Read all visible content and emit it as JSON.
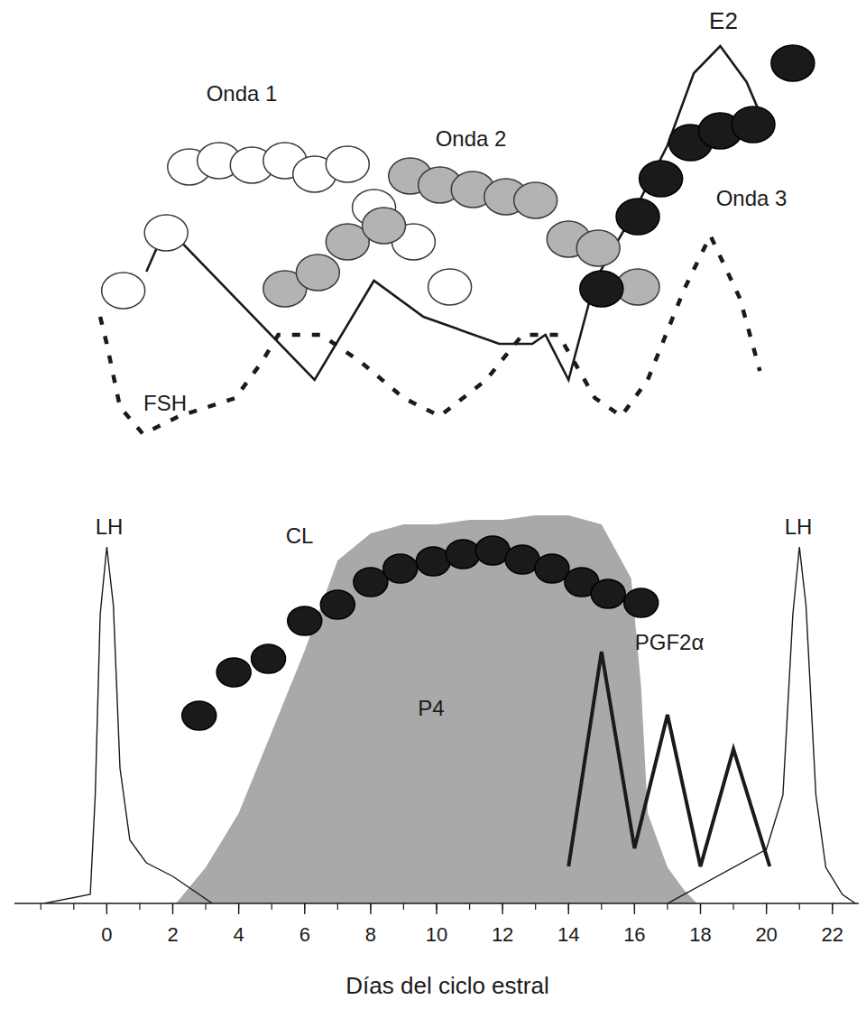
{
  "chart_data": {
    "type": "line",
    "x_label": "Días del ciclo estral",
    "xlim": [
      -2.8,
      22.8
    ],
    "xticks": [
      0,
      2,
      4,
      6,
      8,
      10,
      12,
      14,
      16,
      18,
      20,
      22
    ],
    "ylim": [
      0,
      100
    ],
    "tick_labels": "x",
    "grid": false,
    "series": [
      {
        "name": "P4",
        "type": "area",
        "color": "#a9a9a9",
        "x": [
          2.1,
          3,
          4,
          5,
          6,
          7,
          8,
          9,
          10,
          11,
          12,
          13,
          14,
          15,
          15.9,
          16.2,
          16.4,
          17,
          17.5,
          17.9
        ],
        "values": [
          0,
          4,
          10,
          19,
          28,
          38,
          41,
          42,
          42,
          42.5,
          42.5,
          43,
          43,
          42,
          36,
          24,
          10,
          4,
          1.5,
          0
        ]
      },
      {
        "name": "LH",
        "type": "line",
        "color": "#1a1a1a",
        "line_style": "solid",
        "x": [
          -1.9,
          -0.5,
          -0.35,
          -0.2,
          0,
          0.2,
          0.4,
          0.7,
          1.2,
          2.0,
          3.2
        ],
        "values": [
          0,
          1,
          12,
          32,
          39.5,
          33,
          15,
          7,
          4.5,
          3,
          0
        ]
      },
      {
        "name": "LH",
        "type": "line",
        "color": "#1a1a1a",
        "line_style": "solid",
        "x": [
          17.0,
          20.0,
          20.5,
          20.8,
          21.0,
          21.2,
          21.5,
          21.8,
          22.3,
          22.7
        ],
        "values": [
          0,
          6,
          12,
          32,
          39.5,
          33,
          12,
          4,
          1,
          0
        ]
      },
      {
        "name": "CL",
        "type": "scatter",
        "marker": "circle",
        "color": "#1a1a1a",
        "x": [
          2.8,
          3.85,
          4.9,
          6.0,
          7.0,
          8.0,
          8.9,
          9.9,
          10.8,
          11.7,
          12.6,
          13.5,
          14.4,
          15.2,
          16.2
        ],
        "values": [
          20.8,
          25.6,
          27.1,
          31.3,
          33.1,
          35.6,
          37.1,
          37.9,
          38.7,
          39.1,
          38.1,
          37.1,
          35.6,
          34.3,
          33.3
        ]
      },
      {
        "name": "PGF2α",
        "type": "line",
        "color": "#1a1a1a",
        "line_style": "solid",
        "x": [
          14.0,
          15.0,
          16.0,
          17.0,
          18.0,
          19.0,
          20.1
        ],
        "values": [
          4.1,
          27.9,
          6.1,
          20.9,
          4.1,
          17.1,
          4.1
        ]
      },
      {
        "name": "FSH",
        "type": "line",
        "color": "#1a1a1a",
        "line_style": "dashed",
        "x": [
          -0.2,
          0,
          0.4,
          1.1,
          2.2,
          3.9,
          4.7,
          5.2,
          6.5,
          7.7,
          9.0,
          10.1,
          11.5,
          12.6,
          13.7,
          14.8,
          15.6,
          16.4,
          17.5,
          18.3,
          19.2,
          19.8
        ],
        "values": [
          65,
          62,
          55,
          52,
          54,
          56,
          60,
          63,
          63,
          60,
          56,
          54,
          58,
          63,
          63,
          56,
          54,
          58,
          68,
          74,
          67,
          59
        ]
      },
      {
        "name": "E2",
        "type": "line",
        "color": "#1a1a1a",
        "line_style": "solid",
        "x": [
          1.2,
          1.8,
          6.3,
          8.1,
          9.6,
          11.9,
          12.9,
          13.3,
          14.0,
          14.8,
          15.9,
          17.0,
          17.8,
          18.6,
          19.4,
          20.1
        ],
        "values": [
          70,
          75,
          58,
          69,
          65,
          62,
          62,
          63,
          58,
          69,
          76,
          84,
          92,
          95,
          91,
          85
        ]
      },
      {
        "name": "Onda 1",
        "type": "scatter",
        "marker": "circle",
        "color": "#ffffff",
        "x": [
          0.5,
          1.8,
          2.5,
          3.4,
          4.4,
          5.4,
          6.3,
          7.3,
          8.1,
          9.3,
          10.4
        ],
        "values": [
          67.9,
          74.3,
          81.6,
          82.3,
          81.8,
          82.3,
          80.8,
          81.9,
          77.1,
          73.3,
          68.3
        ]
      },
      {
        "name": "Onda 2",
        "type": "scatter",
        "marker": "circle",
        "color": "#b3b3b3",
        "x": [
          5.4,
          6.4,
          7.3,
          8.4,
          9.2,
          10.1,
          11.1,
          12.1,
          13.0,
          14.0,
          14.9,
          16.1
        ],
        "values": [
          68.1,
          69.9,
          73.3,
          75.1,
          80.6,
          79.6,
          79.1,
          78.3,
          77.9,
          73.6,
          72.6,
          68.3
        ]
      },
      {
        "name": "Onda 3",
        "type": "scatter",
        "marker": "circle",
        "color": "#1a1a1a",
        "x": [
          15.0,
          16.1,
          16.8,
          17.7,
          18.6,
          19.6,
          20.8
        ],
        "values": [
          68.1,
          76.1,
          80.3,
          84.3,
          85.6,
          86.3,
          93.1
        ]
      }
    ]
  }
}
